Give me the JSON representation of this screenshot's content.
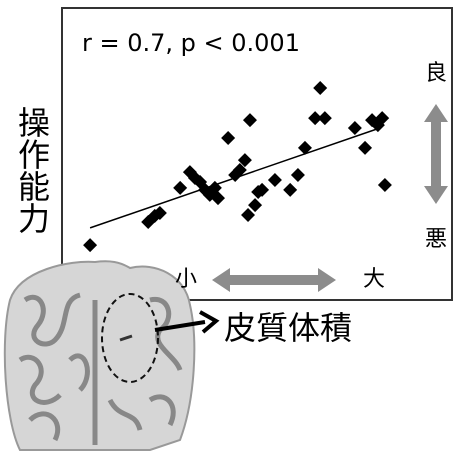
{
  "chart_data": {
    "type": "scatter",
    "annotation": "r = 0.7, p < 0.001",
    "y_label": "操作能力",
    "y_high_label": "良",
    "y_low_label": "悪",
    "x_low_label": "小",
    "x_high_label": "大",
    "x_label": "皮質体積",
    "xlim": [
      0,
      100
    ],
    "ylim": [
      0,
      100
    ],
    "color": "#000000",
    "x": [
      7.2,
      22.1,
      23.8,
      25.1,
      30.3,
      32.8,
      34.1,
      35.4,
      36.7,
      37.9,
      39.2,
      40.0,
      42.6,
      44.4,
      45.6,
      46.9,
      47.7,
      48.2,
      49.5,
      50.3,
      51.3,
      54.6,
      58.5,
      60.5,
      62.3,
      64.9,
      66.2,
      67.4,
      75.1,
      77.7,
      79.5,
      81.0,
      82.1,
      82.8
    ],
    "values": [
      18.8,
      26.7,
      28.8,
      29.8,
      38.4,
      43.8,
      41.8,
      40.4,
      37.7,
      36.0,
      38.4,
      34.9,
      55.5,
      42.8,
      44.5,
      47.9,
      29.1,
      61.6,
      32.5,
      37.0,
      37.7,
      41.1,
      37.7,
      42.8,
      52.1,
      62.3,
      72.6,
      62.3,
      58.9,
      52.1,
      61.6,
      59.9,
      62.3,
      39.4
    ],
    "trendline": {
      "x": [
        7.2,
        81.5
      ],
      "y": [
        24.7,
        58.9
      ]
    }
  }
}
